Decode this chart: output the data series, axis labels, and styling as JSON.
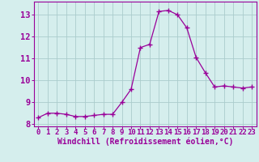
{
  "x": [
    0,
    1,
    2,
    3,
    4,
    5,
    6,
    7,
    8,
    9,
    10,
    11,
    12,
    13,
    14,
    15,
    16,
    17,
    18,
    19,
    20,
    21,
    22,
    23
  ],
  "y": [
    8.3,
    8.5,
    8.5,
    8.45,
    8.35,
    8.35,
    8.4,
    8.45,
    8.45,
    9.0,
    9.6,
    11.5,
    11.65,
    13.15,
    13.2,
    13.0,
    12.4,
    11.05,
    10.35,
    9.7,
    9.75,
    9.7,
    9.65,
    9.7
  ],
  "line_color": "#990099",
  "marker": "+",
  "marker_size": 4,
  "marker_lw": 1.0,
  "line_width": 0.9,
  "xlabel": "Windchill (Refroidissement éolien,°C)",
  "xlim": [
    -0.5,
    23.5
  ],
  "ylim": [
    7.9,
    13.6
  ],
  "yticks": [
    8,
    9,
    10,
    11,
    12,
    13
  ],
  "xticks": [
    0,
    1,
    2,
    3,
    4,
    5,
    6,
    7,
    8,
    9,
    10,
    11,
    12,
    13,
    14,
    15,
    16,
    17,
    18,
    19,
    20,
    21,
    22,
    23
  ],
  "bg_color": "#d5eeed",
  "grid_color": "#aacccc",
  "line_border_color": "#990099",
  "label_color": "#990099",
  "tick_color": "#990099",
  "xlabel_fontsize": 7.0,
  "ytick_fontsize": 7.5,
  "xtick_fontsize": 6.5
}
